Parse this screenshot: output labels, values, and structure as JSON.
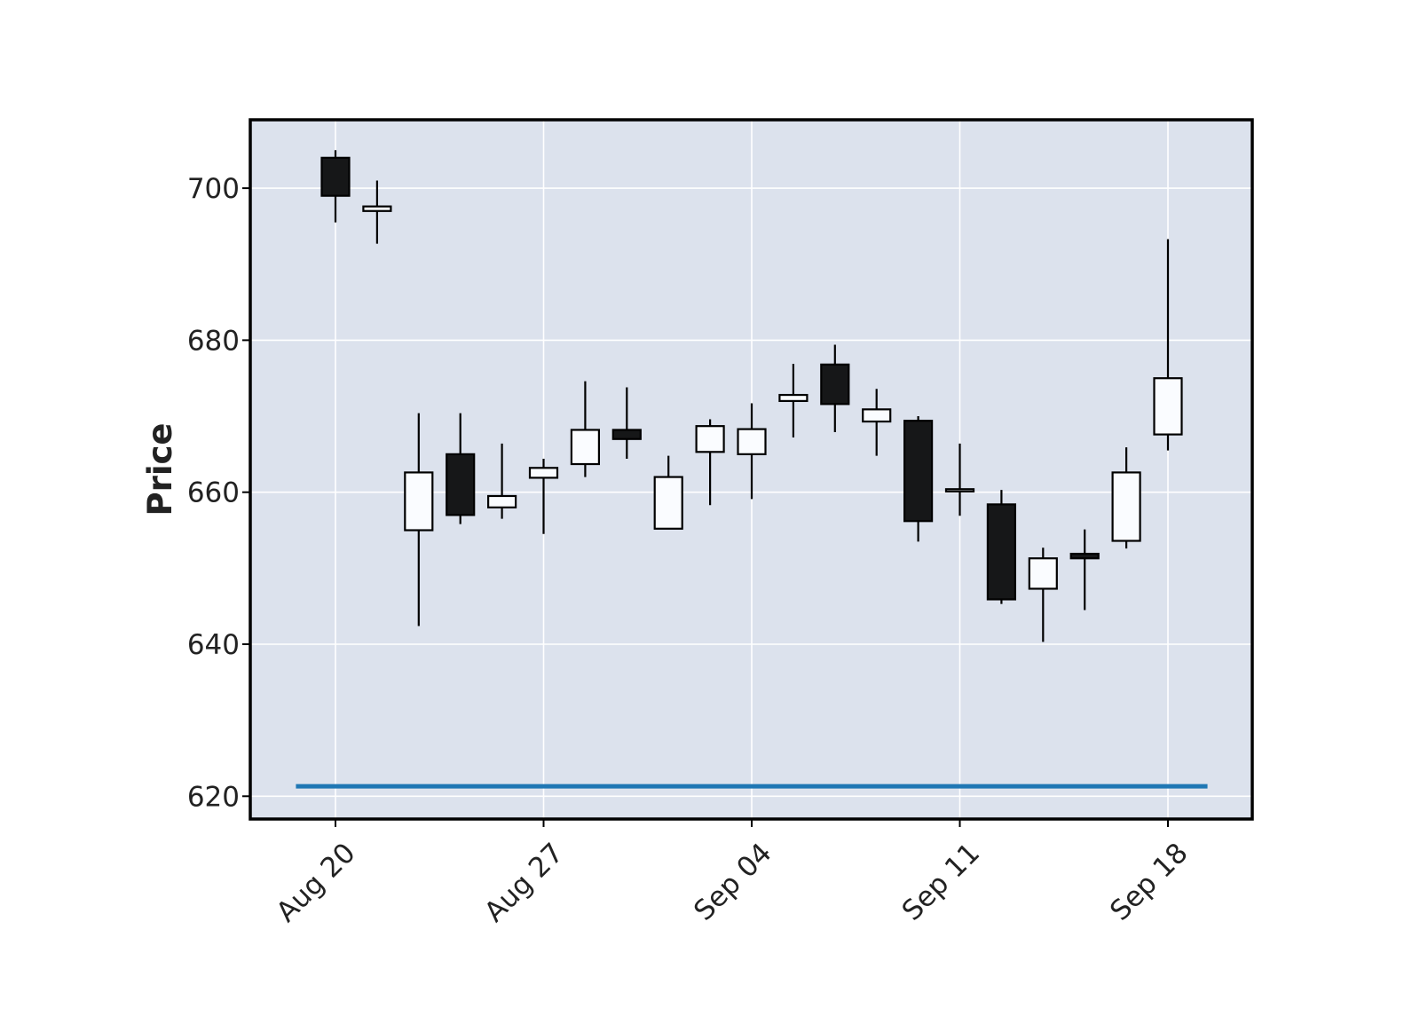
{
  "chart_data": {
    "type": "candlestick",
    "title": "",
    "xlabel": "",
    "ylabel": "Price",
    "ylim": [
      617,
      709
    ],
    "yticks": [
      620,
      640,
      660,
      680,
      700
    ],
    "xticks": [
      {
        "label": "Aug 20",
        "index": 0
      },
      {
        "label": "Aug 27",
        "index": 5
      },
      {
        "label": "Sep 04",
        "index": 10
      },
      {
        "label": "Sep 11",
        "index": 15
      },
      {
        "label": "Sep 18",
        "index": 20
      }
    ],
    "grid": true,
    "candles": [
      {
        "open": 704.0,
        "high": 705.0,
        "low": 695.5,
        "close": 699.0
      },
      {
        "open": 697.0,
        "high": 701.0,
        "low": 692.7,
        "close": 697.6
      },
      {
        "open": 655.0,
        "high": 670.4,
        "low": 642.4,
        "close": 662.6
      },
      {
        "open": 665.0,
        "high": 670.4,
        "low": 655.8,
        "close": 657.0
      },
      {
        "open": 658.0,
        "high": 666.4,
        "low": 656.5,
        "close": 659.5
      },
      {
        "open": 661.9,
        "high": 664.4,
        "low": 654.5,
        "close": 663.2
      },
      {
        "open": 663.7,
        "high": 674.6,
        "low": 662.0,
        "close": 668.2
      },
      {
        "open": 668.2,
        "high": 673.8,
        "low": 664.4,
        "close": 667.0
      },
      {
        "open": 655.2,
        "high": 664.8,
        "low": 655.2,
        "close": 662.0
      },
      {
        "open": 665.3,
        "high": 669.6,
        "low": 658.3,
        "close": 668.7
      },
      {
        "open": 665.0,
        "high": 671.7,
        "low": 659.1,
        "close": 668.3
      },
      {
        "open": 672.0,
        "high": 676.9,
        "low": 667.2,
        "close": 672.8
      },
      {
        "open": 676.8,
        "high": 679.4,
        "low": 667.9,
        "close": 671.6
      },
      {
        "open": 669.3,
        "high": 673.6,
        "low": 664.8,
        "close": 670.9
      },
      {
        "open": 669.4,
        "high": 670.0,
        "low": 653.5,
        "close": 656.2
      },
      {
        "open": 660.1,
        "high": 666.4,
        "low": 656.9,
        "close": 660.4
      },
      {
        "open": 658.4,
        "high": 660.3,
        "low": 645.3,
        "close": 645.9
      },
      {
        "open": 647.3,
        "high": 652.7,
        "low": 640.3,
        "close": 651.3
      },
      {
        "open": 651.9,
        "high": 655.1,
        "low": 644.5,
        "close": 651.3
      },
      {
        "open": 653.6,
        "high": 665.9,
        "low": 652.6,
        "close": 662.6
      },
      {
        "open": 667.6,
        "high": 693.3,
        "low": 665.5,
        "close": 675.0
      }
    ],
    "hline": {
      "value": 621.3,
      "color": "#1f77b4"
    },
    "colors": {
      "up": "#fafcff",
      "down": "#161718",
      "edge": "#000000",
      "wick": "#000000",
      "background": "#dce2ed",
      "grid": "#ffffff"
    }
  }
}
